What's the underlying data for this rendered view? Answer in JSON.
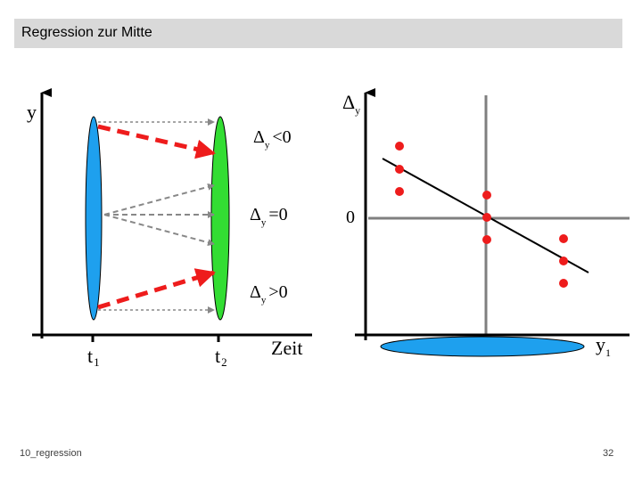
{
  "slide": {
    "title": "Regression zur Mitte",
    "footer_left": "10_regression",
    "page_number": "32"
  },
  "left_diagram": {
    "y_axis_label": "y",
    "t1_base": "t",
    "t1_sub": "1",
    "t2_base": "t",
    "t2_sub": "2",
    "x_axis_label": "Zeit",
    "delta_neg_base": "Δ",
    "delta_neg_sub": "y",
    "delta_neg_rel": "<0",
    "delta_zero_base": "Δ",
    "delta_zero_sub": "y",
    "delta_zero_rel": "=0",
    "delta_pos_base": "Δ",
    "delta_pos_sub": "y",
    "delta_pos_rel": ">0"
  },
  "right_diagram": {
    "y_axis_base": "Δ",
    "y_axis_sub": "y",
    "zero_label": "0",
    "x_axis_base": "y",
    "x_axis_sub": "1"
  },
  "colors": {
    "blue_ellipse": "#1ea0ee",
    "green_ellipse": "#33dd33",
    "red": "#ee1c1c",
    "gray_arrow": "#888888",
    "gray_line": "#7f7f7f"
  }
}
